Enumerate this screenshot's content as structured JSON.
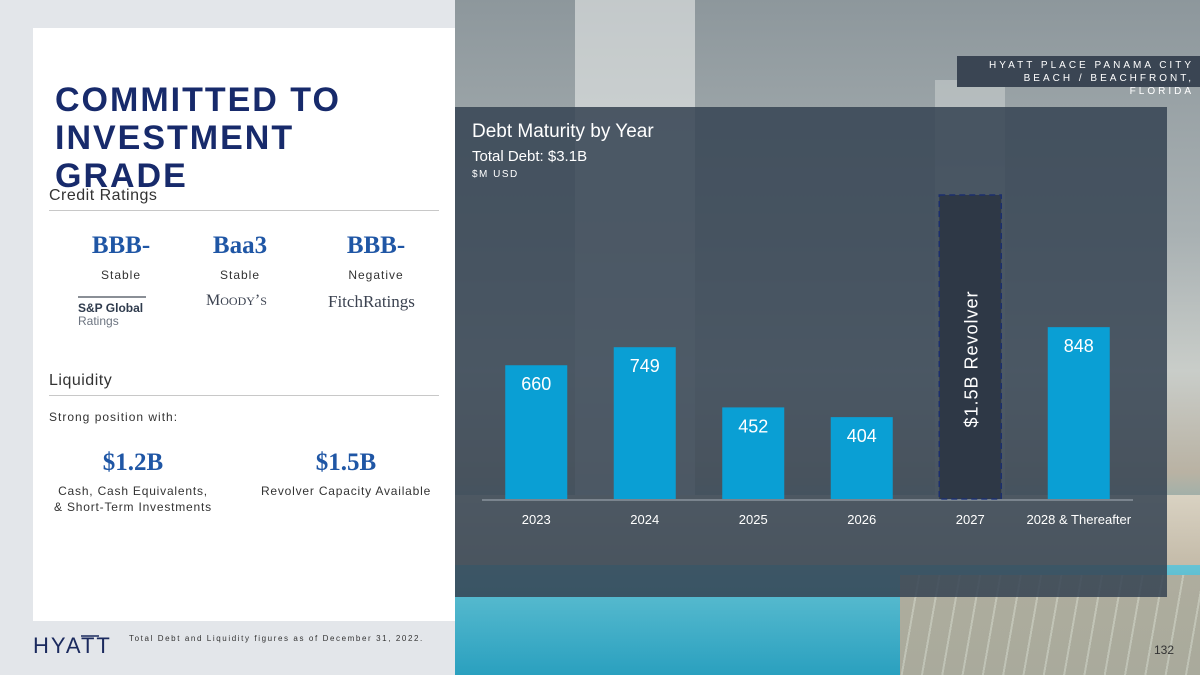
{
  "page_title_line1": "COMMITTED TO",
  "page_title_line2": "INVESTMENT GRADE",
  "photo_caption_line1": "HYATT PLACE PANAMA CITY",
  "photo_caption_line2": "BEACH / BEACHFRONT, FLORIDA",
  "credit_ratings": {
    "label": "Credit Ratings",
    "items": [
      {
        "grade": "BBB-",
        "outlook": "Stable",
        "agency": "S&P Global Ratings"
      },
      {
        "grade": "Baa3",
        "outlook": "Stable",
        "agency": "Moody's"
      },
      {
        "grade": "BBB-",
        "outlook": "Negative",
        "agency": "FitchRatings"
      }
    ]
  },
  "liquidity": {
    "label": "Liquidity",
    "intro": "Strong position with:",
    "items": [
      {
        "amount": "$1.2B",
        "desc_line1": "Cash, Cash Equivalents,",
        "desc_line2": "& Short-Term Investments"
      },
      {
        "amount": "$1.5B",
        "desc_line1": "Revolver Capacity Available",
        "desc_line2": ""
      }
    ]
  },
  "chart_data": {
    "type": "bar",
    "title": "Debt Maturity by Year",
    "subtitle": "Total Debt: $3.1B",
    "unit_label": "$M USD",
    "categories": [
      "2023",
      "2024",
      "2025",
      "2026",
      "2027",
      "2028 & Thereafter"
    ],
    "values": [
      660,
      749,
      452,
      404,
      null,
      848
    ],
    "revolver": {
      "category": "2027",
      "label": "$1.5B Revolver",
      "value": 1500
    },
    "ylim": [
      0,
      1500
    ],
    "grid": false,
    "colors": {
      "bar": "#0a9fd4",
      "revolver": "#2e3846",
      "revolver_border": "#1c2f6e",
      "text": "#ffffff"
    }
  },
  "footnote": "Total Debt and Liquidity figures as of December 31, 2022.",
  "brand": "HYATT",
  "page_number": "132"
}
